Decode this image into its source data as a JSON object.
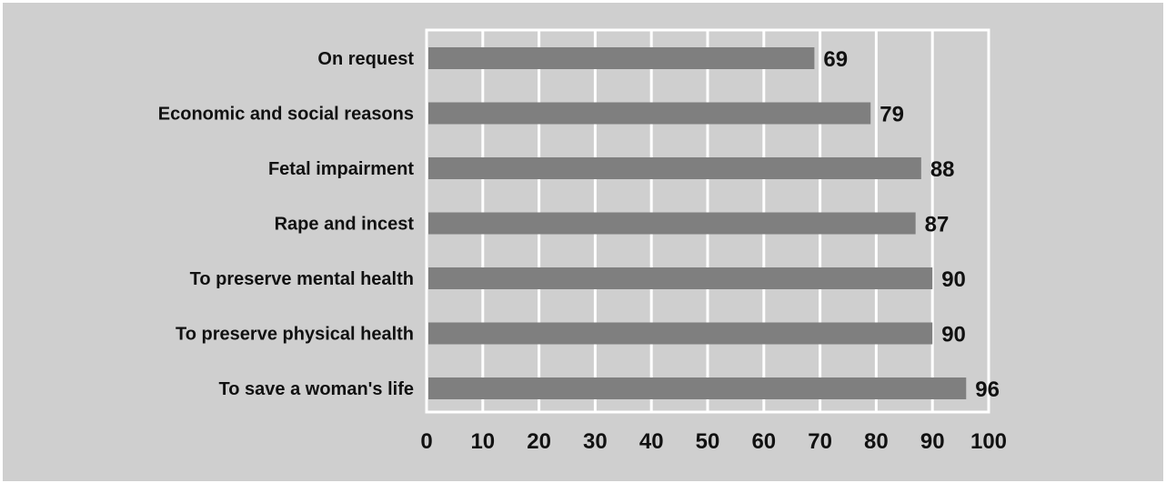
{
  "chart_data": {
    "type": "bar",
    "orientation": "horizontal",
    "title": "",
    "xlabel": "",
    "ylabel": "",
    "categories": [
      "On request",
      "Economic and social reasons",
      "Fetal impairment",
      "Rape and incest",
      "To preserve mental health",
      "To preserve physical health",
      "To save a woman's life"
    ],
    "values": [
      69,
      79,
      88,
      87,
      90,
      90,
      96
    ],
    "data_labels": [
      "69",
      "79",
      "88",
      "87",
      "90",
      "90",
      "96"
    ],
    "xlim": [
      0,
      100
    ],
    "xticks": [
      "0",
      "10",
      "20",
      "30",
      "40",
      "50",
      "60",
      "70",
      "80",
      "90",
      "100"
    ],
    "grid": "vertical",
    "legend": "none",
    "colors": {
      "background": "#cfcfcf",
      "bar": "#7f7f7f",
      "grid": "#ffffff",
      "text": "#111111"
    }
  }
}
